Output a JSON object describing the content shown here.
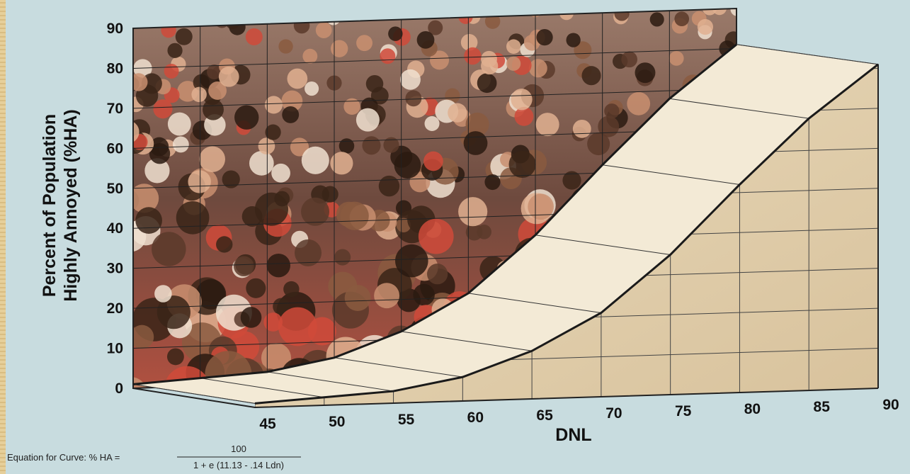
{
  "chart_data": {
    "type": "line",
    "y_label": [
      "Percent of Population",
      "Highly Annoyed (%HA)"
    ],
    "x_label": "DNL",
    "x": [
      45,
      50,
      55,
      60,
      65,
      70,
      75,
      80,
      85,
      90
    ],
    "values": [
      1,
      2,
      3,
      6,
      12,
      21,
      35,
      52,
      68,
      81
    ],
    "color": "#1a1a1a",
    "xlim": [
      45,
      90
    ],
    "xticks": [
      45,
      50,
      55,
      60,
      65,
      70,
      75,
      80,
      85,
      90
    ],
    "ylim": [
      0,
      90
    ],
    "yticks": [
      0,
      10,
      20,
      30,
      40,
      50,
      60,
      70,
      80,
      90
    ],
    "grid": true,
    "equation": {
      "lhs": "Equation for Curve:  % HA =",
      "numerator": "100",
      "denominator": "1 + e (11.13 - .14 Ldn)"
    }
  }
}
